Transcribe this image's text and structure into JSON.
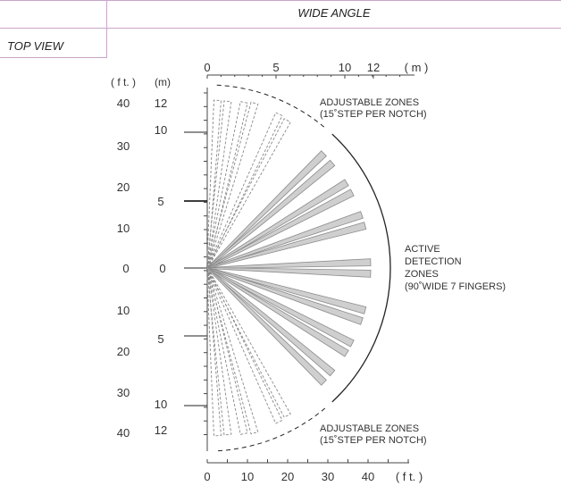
{
  "header": {
    "title": "WIDE ANGLE"
  },
  "view_label": "TOP VIEW",
  "top_axis": {
    "ticks": [
      "0",
      "5",
      "10",
      "12"
    ],
    "unit": "( m )"
  },
  "bottom_axis": {
    "ticks": [
      "0",
      "10",
      "20",
      "30",
      "40"
    ],
    "unit": "( f t. )"
  },
  "left_axes": {
    "ft_header": "( f t. )",
    "m_header": "(m)",
    "ft_ticks_upper": [
      "40",
      "30",
      "20",
      "10"
    ],
    "ft_zero": "0",
    "ft_ticks_lower": [
      "10",
      "20",
      "30",
      "40"
    ],
    "m_ticks_upper": [
      "12",
      "10",
      "5"
    ],
    "m_zero": "0",
    "m_ticks_lower": [
      "5",
      "10",
      "12"
    ]
  },
  "annotations": {
    "adjustable_top": [
      "ADJUSTABLE ZONES",
      "(15˚STEP  PER  NOTCH)"
    ],
    "active": [
      "ACTIVE",
      "DETECTION",
      "ZONES",
      "(90˚WIDE 7 FINGERS)"
    ],
    "adjustable_bottom": [
      "ADJUSTABLE ZONES",
      "(15˚STEP  PER  NOTCH)"
    ]
  },
  "colors": {
    "grid_line": "#c8a6c9",
    "finger_fill": "#cfcfcf",
    "finger_stroke": "#8a8a8a"
  }
}
